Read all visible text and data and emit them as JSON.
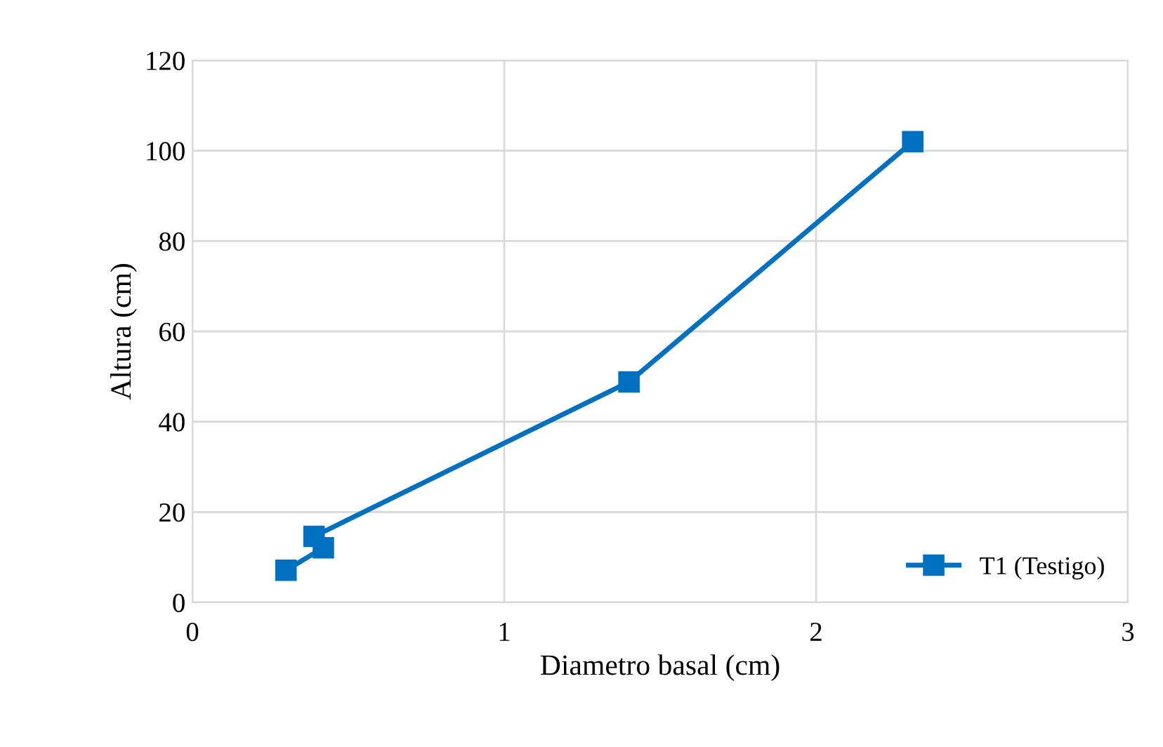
{
  "chart_data": {
    "type": "line",
    "xlabel": "Diametro basal (cm)",
    "ylabel": "Altura (cm)",
    "series": [
      {
        "name": "T1 (Testigo)",
        "color": "#0070c0",
        "x": [
          0.3,
          0.42,
          0.39,
          1.4,
          2.31
        ],
        "values": [
          7.1,
          12.1,
          14.6,
          48.8,
          102
        ]
      }
    ],
    "xlim": [
      0,
      3
    ],
    "xticks": [
      0,
      1,
      2,
      3
    ],
    "ylim": [
      0,
      120
    ],
    "yticks": [
      0,
      20,
      40,
      60,
      80,
      100,
      120
    ],
    "grid": true,
    "legend": "bottom right",
    "marker": "square",
    "line_style": "solid"
  }
}
